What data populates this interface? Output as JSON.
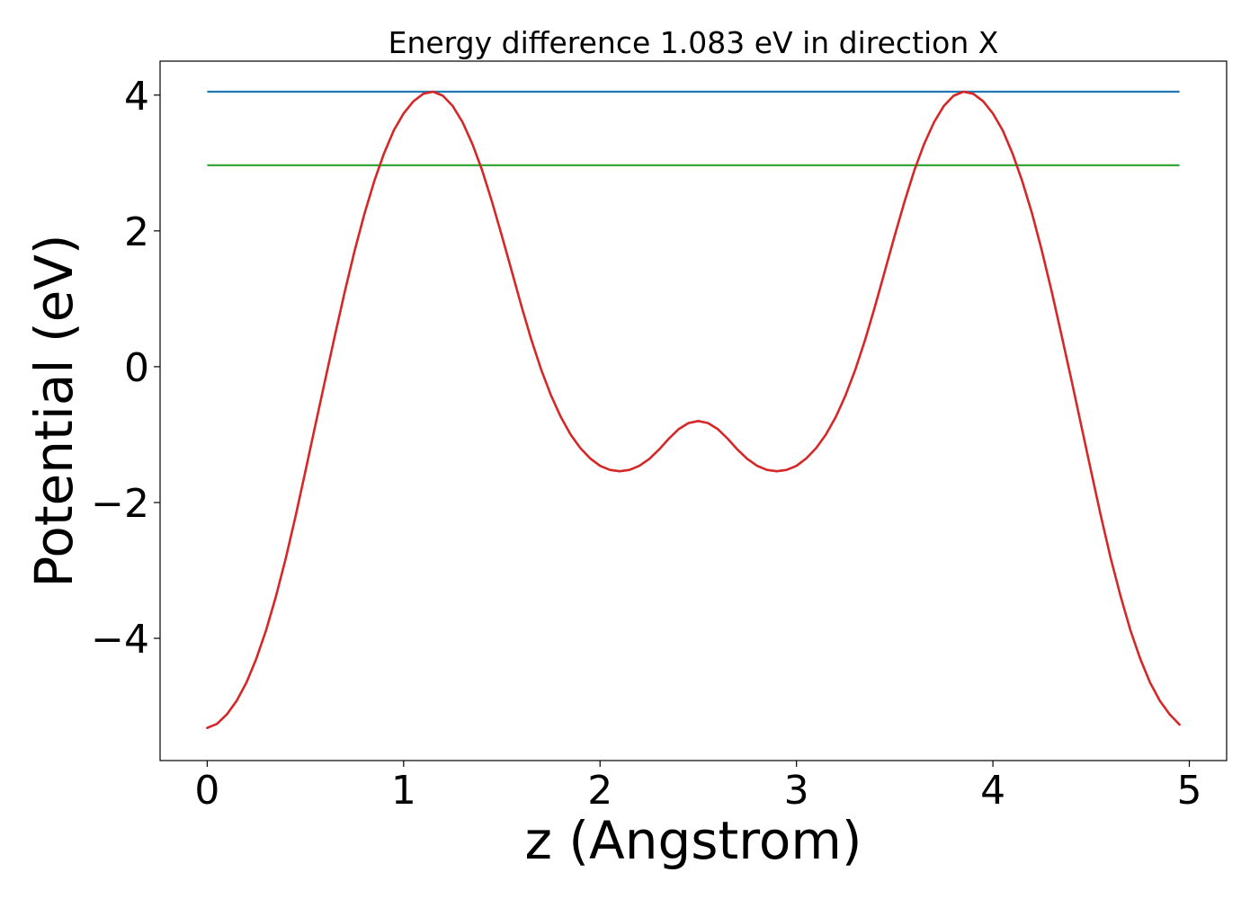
{
  "chart_data": {
    "type": "line",
    "title": "Energy difference 1.083 eV in direction X",
    "xlabel": "z (Angstrom)",
    "ylabel": "Potential (eV)",
    "xlim": [
      -0.24,
      5.19
    ],
    "ylim": [
      -5.8,
      4.5
    ],
    "xticks": [
      {
        "value": 0,
        "label": "0"
      },
      {
        "value": 1,
        "label": "1"
      },
      {
        "value": 2,
        "label": "2"
      },
      {
        "value": 3,
        "label": "3"
      },
      {
        "value": 4,
        "label": "4"
      },
      {
        "value": 5,
        "label": "5"
      }
    ],
    "yticks": [
      {
        "value": -4,
        "label": "−4"
      },
      {
        "value": -2,
        "label": "−2"
      },
      {
        "value": 0,
        "label": "0"
      },
      {
        "value": 2,
        "label": "2"
      },
      {
        "value": 4,
        "label": "4"
      }
    ],
    "grid": false,
    "colors": {
      "potential": "#d62728",
      "max_line": "#1f77b4",
      "mean_line": "#2ca02c"
    },
    "series": [
      {
        "x": [
          0.0,
          0.05,
          0.1,
          0.15,
          0.2,
          0.25,
          0.3,
          0.35,
          0.4,
          0.45,
          0.5,
          0.55,
          0.6,
          0.65,
          0.7,
          0.75,
          0.8,
          0.85,
          0.9,
          0.95,
          1.0,
          1.05,
          1.1,
          1.15,
          1.2,
          1.25,
          1.3,
          1.35,
          1.4,
          1.45,
          1.5,
          1.55,
          1.6,
          1.65,
          1.7,
          1.75,
          1.8,
          1.85,
          1.9,
          1.95,
          2.0,
          2.05,
          2.1,
          2.15,
          2.2,
          2.25,
          2.3,
          2.35,
          2.4,
          2.45,
          2.5,
          2.55,
          2.6,
          2.65,
          2.7,
          2.75,
          2.8,
          2.85,
          2.9,
          2.95,
          3.0,
          3.05,
          3.1,
          3.15,
          3.2,
          3.25,
          3.3,
          3.35,
          3.4,
          3.45,
          3.5,
          3.55,
          3.6,
          3.65,
          3.7,
          3.75,
          3.8,
          3.85,
          3.9,
          3.95,
          4.0,
          4.05,
          4.1,
          4.15,
          4.2,
          4.25,
          4.3,
          4.35,
          4.4,
          4.45,
          4.5,
          4.55,
          4.6,
          4.65,
          4.7,
          4.75,
          4.8,
          4.85,
          4.9,
          4.95
        ],
        "y": [
          -5.32,
          -5.26,
          -5.12,
          -4.92,
          -4.65,
          -4.3,
          -3.88,
          -3.38,
          -2.82,
          -2.2,
          -1.54,
          -0.87,
          -0.2,
          0.46,
          1.1,
          1.7,
          2.25,
          2.73,
          3.14,
          3.48,
          3.73,
          3.91,
          4.02,
          4.05,
          3.99,
          3.84,
          3.6,
          3.28,
          2.89,
          2.43,
          1.93,
          1.41,
          0.89,
          0.4,
          -0.04,
          -0.42,
          -0.74,
          -1.0,
          -1.2,
          -1.35,
          -1.46,
          -1.52,
          -1.54,
          -1.52,
          -1.46,
          -1.36,
          -1.22,
          -1.06,
          -0.92,
          -0.83,
          -0.8,
          -0.83,
          -0.92,
          -1.06,
          -1.22,
          -1.36,
          -1.46,
          -1.52,
          -1.54,
          -1.52,
          -1.46,
          -1.35,
          -1.2,
          -1.0,
          -0.74,
          -0.42,
          -0.04,
          0.4,
          0.89,
          1.41,
          1.93,
          2.43,
          2.89,
          3.28,
          3.6,
          3.84,
          3.99,
          4.05,
          4.02,
          3.91,
          3.73,
          3.48,
          3.14,
          2.73,
          2.25,
          1.7,
          1.1,
          0.46,
          -0.2,
          -0.87,
          -1.54,
          -2.2,
          -2.82,
          -3.38,
          -3.88,
          -4.3,
          -4.65,
          -4.92,
          -5.12,
          -5.27
        ]
      }
    ],
    "hlines": [
      {
        "y": 4.05,
        "x_start": 0.0,
        "x_end": 4.95
      },
      {
        "y": 2.967,
        "x_start": 0.0,
        "x_end": 4.95
      }
    ]
  }
}
